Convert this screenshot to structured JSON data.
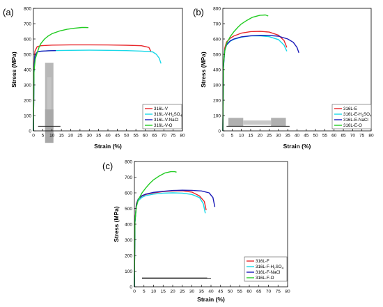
{
  "chart_data": [
    {
      "panel_label": "(a)",
      "type": "line",
      "xlabel": "Strain (%)",
      "ylabel": "Stress (MPa)",
      "xlim": [
        0,
        80
      ],
      "ylim": [
        0,
        800
      ],
      "xticks": [
        0,
        5,
        10,
        15,
        20,
        25,
        30,
        35,
        40,
        45,
        50,
        55,
        60,
        65,
        70,
        75,
        80
      ],
      "yticks": [
        0,
        100,
        200,
        300,
        400,
        500,
        600,
        700,
        800
      ],
      "grid": false,
      "legend_position": "bottom-right",
      "inset": "vertical tensile specimen",
      "series": [
        {
          "name": "316L-V",
          "color": "#e8262a",
          "x": [
            0,
            0.3,
            0.8,
            2,
            4,
            10,
            20,
            30,
            40,
            50,
            58,
            62,
            63
          ],
          "y": [
            0,
            400,
            520,
            550,
            556,
            560,
            562,
            562,
            561,
            559,
            556,
            545,
            520
          ]
        },
        {
          "name": "316L-V-H2SO4",
          "name_main": "316L-V-H",
          "name_sub": "2",
          "name_tail": "SO",
          "name_sub2": "4",
          "color": "#18d8e8",
          "x": [
            0,
            0.3,
            0.8,
            2,
            4,
            10,
            20,
            30,
            40,
            50,
            58,
            64,
            66,
            67.5,
            68.5
          ],
          "y": [
            0,
            380,
            490,
            515,
            520,
            524,
            526,
            527,
            526,
            524,
            521,
            516,
            500,
            475,
            440
          ]
        },
        {
          "name": "316L-V-NaCl",
          "color": "#1a1ab8",
          "x": [
            0,
            0.3,
            0.8,
            2,
            4,
            8,
            12
          ],
          "y": [
            0,
            380,
            490,
            515,
            520,
            523,
            524
          ]
        },
        {
          "name": "316L-V-O",
          "color": "#22cc22",
          "x": [
            0,
            0.3,
            1,
            2,
            3,
            4,
            6,
            8,
            10,
            14,
            18,
            22,
            26,
            28,
            29.5
          ],
          "y": [
            0,
            390,
            470,
            510,
            545,
            570,
            600,
            620,
            635,
            652,
            663,
            670,
            675,
            675,
            674
          ]
        }
      ]
    },
    {
      "panel_label": "(b)",
      "type": "line",
      "xlabel": "Strain (%)",
      "ylabel": "Stress (MPa)",
      "xlim": [
        0,
        80
      ],
      "ylim": [
        0,
        800
      ],
      "xticks": [
        0,
        5,
        10,
        15,
        20,
        25,
        30,
        35,
        40,
        45,
        50,
        55,
        60,
        65,
        70,
        75,
        80
      ],
      "yticks": [
        0,
        100,
        200,
        300,
        400,
        500,
        600,
        700,
        800
      ],
      "grid": false,
      "legend_position": "bottom-right",
      "inset": "horizontal tensile specimen",
      "series": [
        {
          "name": "316L-E",
          "color": "#e8262a",
          "x": [
            0,
            0.3,
            1,
            2,
            4,
            6,
            10,
            15,
            20,
            25,
            30,
            33,
            34.5
          ],
          "y": [
            0,
            420,
            540,
            580,
            605,
            620,
            638,
            648,
            650,
            645,
            625,
            590,
            545
          ]
        },
        {
          "name": "316L-E-H2SO4",
          "name_main": "316L-E-H",
          "name_sub": "2",
          "name_tail": "SO",
          "name_sub2": "4",
          "color": "#18d8e8",
          "x": [
            0,
            0.3,
            1,
            2,
            4,
            6,
            10,
            15,
            20,
            25,
            30,
            33,
            34.5
          ],
          "y": [
            0,
            410,
            525,
            560,
            585,
            598,
            612,
            620,
            621,
            615,
            596,
            560,
            520
          ]
        },
        {
          "name": "316L-E-NaCl",
          "color": "#1a1ab8",
          "x": [
            0,
            0.3,
            1,
            2,
            4,
            6,
            10,
            15,
            20,
            25,
            30,
            35,
            38,
            40,
            41
          ],
          "y": [
            0,
            410,
            525,
            562,
            588,
            600,
            614,
            621,
            624,
            623,
            618,
            600,
            578,
            545,
            510
          ]
        },
        {
          "name": "316L-E-O",
          "color": "#22cc22",
          "x": [
            0,
            0.3,
            1,
            2,
            4,
            6,
            8,
            10,
            13,
            16,
            20,
            23,
            24.5
          ],
          "y": [
            0,
            430,
            520,
            570,
            615,
            648,
            675,
            698,
            722,
            742,
            755,
            757,
            750
          ]
        }
      ]
    },
    {
      "panel_label": "(c)",
      "type": "line",
      "xlabel": "Strain (%)",
      "ylabel": "Stress (MPa)",
      "xlim": [
        0,
        80
      ],
      "ylim": [
        0,
        800
      ],
      "xticks": [
        0,
        5,
        10,
        15,
        20,
        25,
        30,
        35,
        40,
        45,
        50,
        55,
        60,
        65,
        70,
        75,
        80
      ],
      "yticks": [
        0,
        100,
        200,
        300,
        400,
        500,
        600,
        700,
        800
      ],
      "grid": false,
      "legend_position": "bottom-right",
      "inset": "flat tensile specimen",
      "series": [
        {
          "name": "316L-F",
          "color": "#e8262a",
          "x": [
            0,
            0.3,
            1,
            2,
            4,
            6,
            10,
            15,
            20,
            25,
            30,
            34,
            36.5,
            37.5
          ],
          "y": [
            0,
            420,
            530,
            560,
            580,
            590,
            600,
            608,
            612,
            613,
            605,
            580,
            545,
            490
          ]
        },
        {
          "name": "316L-F-H2SO4",
          "name_main": "316L-F-H",
          "name_sub": "2",
          "name_tail": "SO",
          "name_sub2": "4",
          "color": "#18d8e8",
          "x": [
            0,
            0.3,
            1,
            2,
            4,
            6,
            10,
            15,
            20,
            25,
            30,
            34,
            36,
            37
          ],
          "y": [
            0,
            410,
            520,
            550,
            572,
            582,
            592,
            598,
            600,
            598,
            590,
            570,
            530,
            470
          ]
        },
        {
          "name": "316L-F-NaCl",
          "color": "#1a1ab8",
          "x": [
            0,
            0.3,
            1,
            2,
            4,
            6,
            10,
            15,
            20,
            25,
            30,
            35,
            39,
            41,
            42
          ],
          "y": [
            0,
            410,
            525,
            560,
            582,
            592,
            603,
            610,
            615,
            617,
            616,
            612,
            600,
            570,
            510
          ]
        },
        {
          "name": "316L-F-O",
          "color": "#22cc22",
          "x": [
            0,
            0.3,
            1,
            2,
            4,
            6,
            8,
            10,
            13,
            16,
            19,
            21,
            22
          ],
          "y": [
            0,
            420,
            510,
            555,
            600,
            632,
            660,
            683,
            708,
            727,
            735,
            735,
            732
          ]
        }
      ]
    }
  ]
}
